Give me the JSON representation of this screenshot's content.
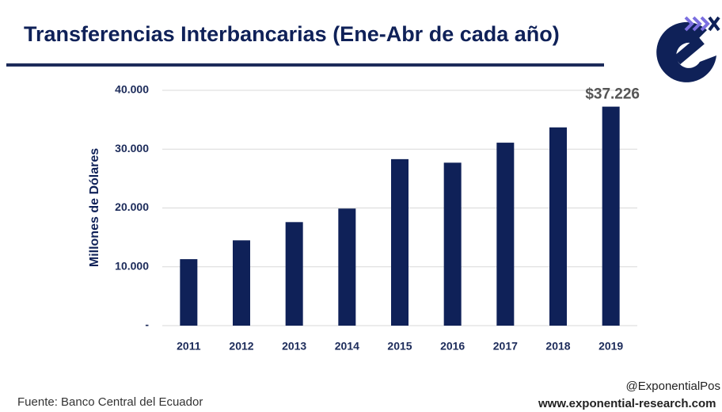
{
  "chart_data": {
    "type": "bar",
    "title": "Transferencias Interbancarias (Ene-Abr de cada año)",
    "y_axis_label": "Millones de Dólares",
    "categories": [
      "2011",
      "2012",
      "2013",
      "2014",
      "2015",
      "2016",
      "2017",
      "2018",
      "2019"
    ],
    "values": [
      11300,
      14500,
      17600,
      19900,
      28300,
      27700,
      31100,
      33700,
      37226
    ],
    "value_labels": [
      null,
      null,
      null,
      null,
      null,
      null,
      null,
      null,
      "$37.226"
    ],
    "color": "#0f2158",
    "ylim": [
      0,
      40000
    ],
    "yticks": [
      {
        "value": 0,
        "label": "-"
      },
      {
        "value": 10000,
        "label": "10.000"
      },
      {
        "value": 20000,
        "label": "20.000"
      },
      {
        "value": 30000,
        "label": "30.000"
      },
      {
        "value": 40000,
        "label": "40.000"
      }
    ],
    "grid": true,
    "source": "Fuente: Banco Central del Ecuador",
    "handle": "@ExponentialPos",
    "website": "www.exponential-research.com"
  }
}
